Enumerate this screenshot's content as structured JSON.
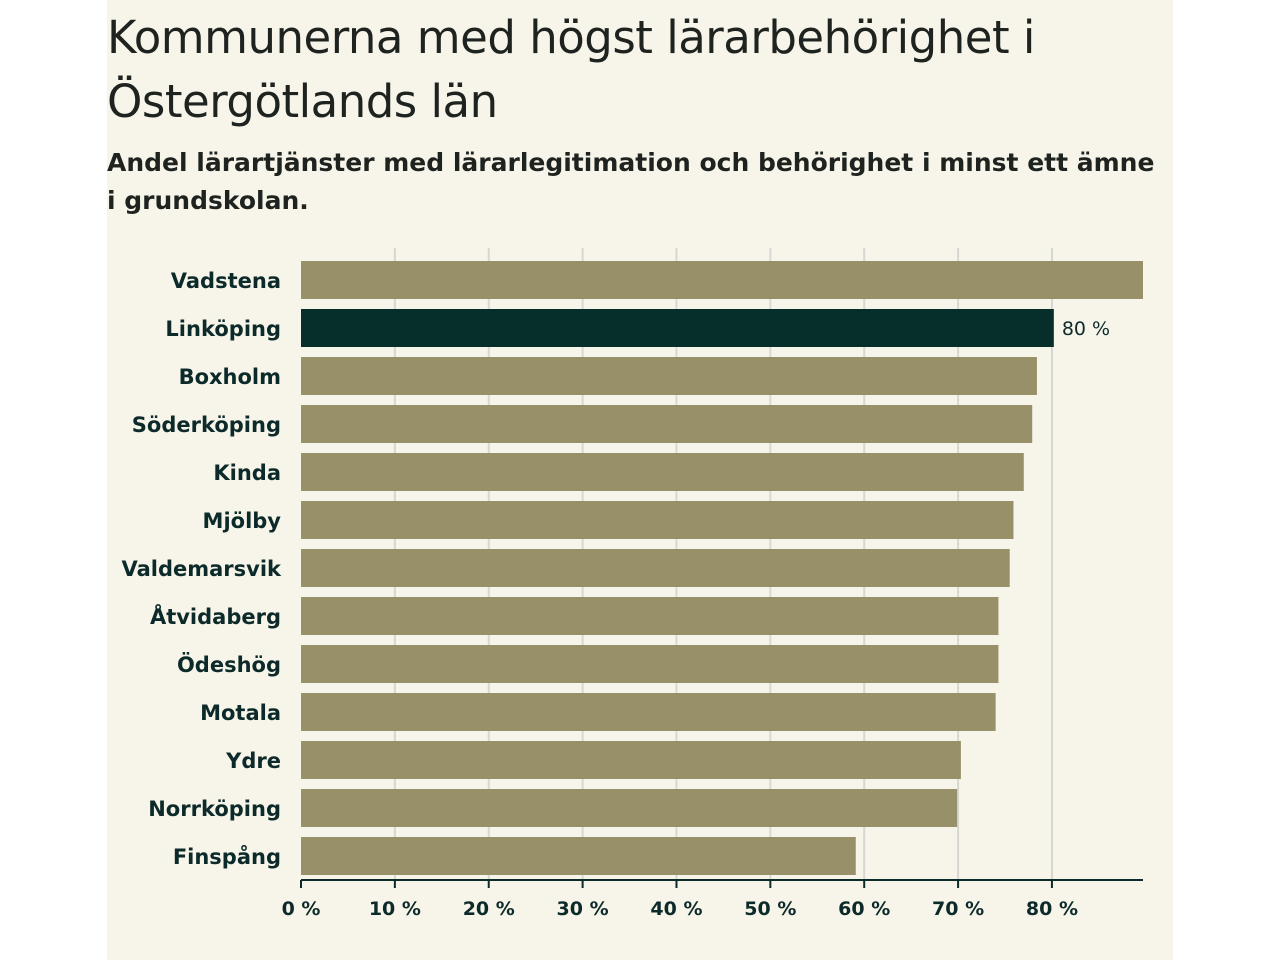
{
  "title": "Kommunerna med högst lärarbehörighet i Östergötlands län",
  "subtitle": "Andel lärartjänster med lärarlegitimation och behörighet i minst ett ämne i grundskolan.",
  "colors": {
    "bar": "#979069",
    "highlight": "#062f2c",
    "background": "#f7f5ea",
    "grid": "#d6d6d2",
    "axis": "#0d2a2a"
  },
  "chart_data": {
    "type": "bar",
    "orientation": "horizontal",
    "title": "Kommunerna med högst lärarbehörighet i Östergötlands län",
    "subtitle": "Andel lärartjänster med lärarlegitimation och behörighet i minst ett ämne i grundskolan.",
    "categories": [
      "Vadstena",
      "Linköping",
      "Boxholm",
      "Söderköping",
      "Kinda",
      "Mjölby",
      "Valdemarsvik",
      "Åtvidaberg",
      "Ödeshög",
      "Motala",
      "Ydre",
      "Norrköping",
      "Finspång"
    ],
    "values": [
      89.7,
      80.2,
      78.4,
      77.9,
      77.0,
      75.9,
      75.5,
      74.3,
      74.3,
      74.0,
      70.3,
      69.9,
      59.1
    ],
    "highlight": "Linköping",
    "data_labels": [
      {
        "category": "Linköping",
        "text": "80 %"
      }
    ],
    "x_ticks": [
      0,
      10,
      20,
      30,
      40,
      50,
      60,
      70,
      80
    ],
    "x_tick_labels": [
      "0 %",
      "10 %",
      "20 %",
      "30 %",
      "40 %",
      "50 %",
      "60 %",
      "70 %",
      "80 %"
    ],
    "xlim": [
      0,
      89.7
    ],
    "xlabel": "",
    "ylabel": "",
    "grid": true
  }
}
